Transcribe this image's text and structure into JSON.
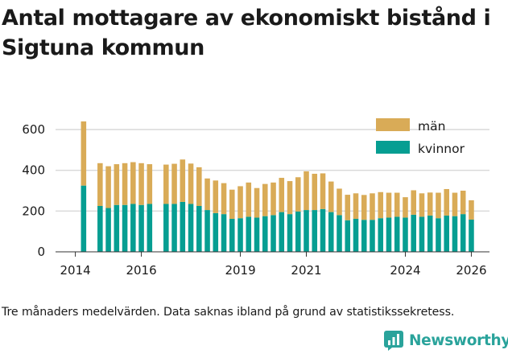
{
  "title": "Antal mottagare av ekonomiskt bistånd i Sigtuna kommun",
  "caption": "Tre månaders medelvärden. Data saknas ibland på grund av statistikssekretess.",
  "brand": {
    "name": "Newsworthy"
  },
  "colors": {
    "man": "#d9ab57",
    "kvinnor": "#069e92",
    "grid": "#d9d9d9",
    "text": "#1a1a1a",
    "brand": "#2aa39b"
  },
  "chart_data": {
    "type": "bar",
    "stacked": true,
    "title": "Antal mottagare av ekonomiskt bistånd i Sigtuna kommun",
    "xlabel": "",
    "ylabel": "",
    "ylim": [
      0,
      680
    ],
    "xlim": [
      2013.4,
      2026.55
    ],
    "yticks": [
      0,
      200,
      400,
      600
    ],
    "xticks": [
      "2014",
      "2016",
      "2019",
      "2021",
      "2024",
      "2026"
    ],
    "xtick_values": [
      2014,
      2016,
      2019,
      2021,
      2024,
      2026
    ],
    "grid": true,
    "legend_position": "top-right",
    "legend": [
      "män",
      "kvinnor"
    ],
    "bar_width_years": 0.16,
    "series": [
      {
        "name": "kvinnor",
        "key": "kvinnor",
        "values": [
          325,
          225,
          215,
          230,
          230,
          235,
          230,
          235,
          235,
          235,
          245,
          235,
          225,
          205,
          190,
          185,
          162,
          165,
          172,
          168,
          175,
          180,
          195,
          185,
          198,
          205,
          205,
          210,
          195,
          180,
          155,
          162,
          157,
          157,
          165,
          168,
          172,
          168,
          182,
          172,
          178,
          165,
          178,
          175,
          185,
          158
        ]
      },
      {
        "name": "män",
        "key": "man",
        "values": [
          315,
          210,
          205,
          200,
          205,
          205,
          205,
          195,
          193,
          197,
          208,
          198,
          190,
          155,
          160,
          152,
          143,
          157,
          168,
          145,
          158,
          160,
          168,
          162,
          168,
          190,
          178,
          175,
          150,
          130,
          125,
          125,
          122,
          130,
          128,
          122,
          118,
          100,
          120,
          115,
          113,
          125,
          130,
          115,
          115,
          95
        ]
      }
    ],
    "x": [
      2014.25,
      2014.75,
      2015.0,
      2015.25,
      2015.5,
      2015.75,
      2016.0,
      2016.25,
      2016.75,
      2017.0,
      2017.25,
      2017.5,
      2017.75,
      2018.0,
      2018.25,
      2018.5,
      2018.75,
      2019.0,
      2019.25,
      2019.5,
      2019.75,
      2020.0,
      2020.25,
      2020.5,
      2020.75,
      2021.0,
      2021.25,
      2021.5,
      2021.75,
      2022.0,
      2022.25,
      2022.5,
      2022.75,
      2023.0,
      2023.25,
      2023.5,
      2023.75,
      2024.0,
      2024.25,
      2024.5,
      2024.75,
      2025.0,
      2025.25,
      2025.5,
      2025.75,
      2026.0
    ]
  }
}
